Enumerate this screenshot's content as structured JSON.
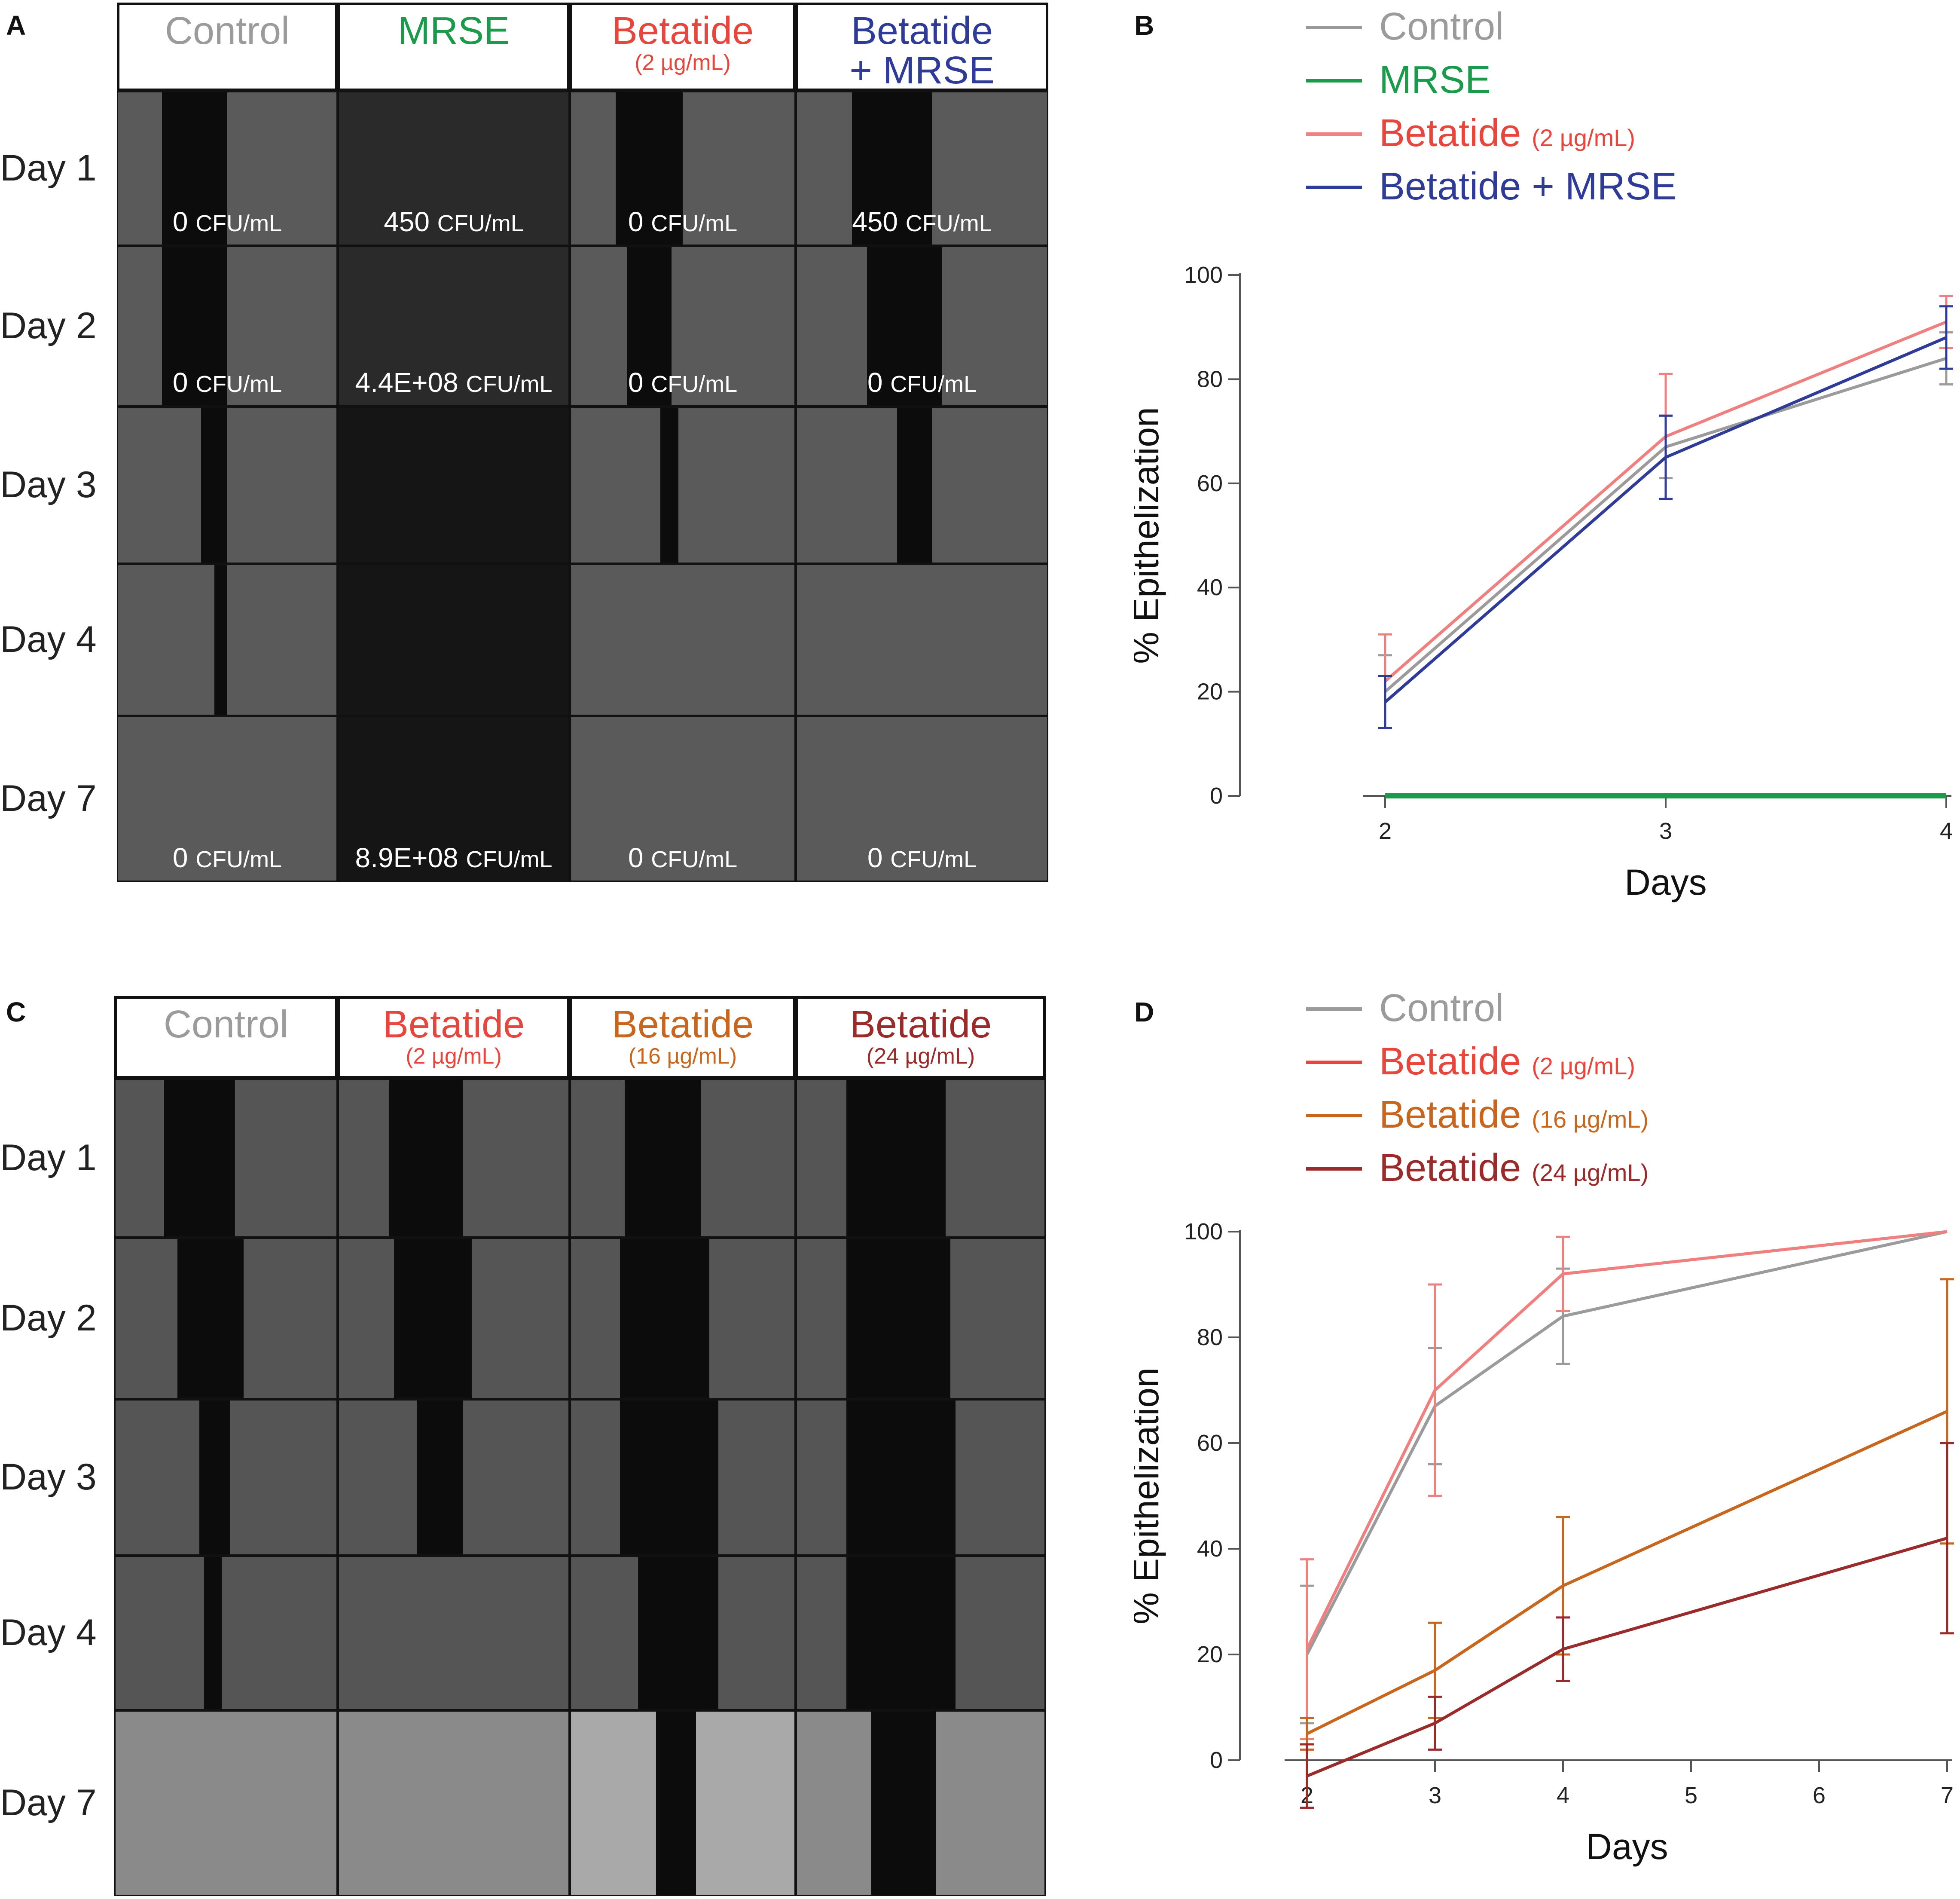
{
  "panel_letters": {
    "a": "A",
    "b": "B",
    "c": "C",
    "d": "D"
  },
  "colors": {
    "control": "#9b9b9b",
    "mrse": "#1a9b4b",
    "betatide2": "#f08080",
    "betatide2_text": "#e8453c",
    "combo": "#2e3b98",
    "betatide16": "#c8661e",
    "betatide24": "#9b2a2a"
  },
  "panel_a": {
    "headers": [
      {
        "title": "Control",
        "sub": "",
        "color": "#9b9b9b"
      },
      {
        "title": "MRSE",
        "sub": "",
        "color": "#1a9b4b"
      },
      {
        "title": "Betatide",
        "sub": "(2 µg/mL)",
        "color": "#e8453c"
      },
      {
        "title": "Betatide",
        "sub": "+ MRSE",
        "color": "#2e3b98"
      }
    ],
    "days": [
      "Day 1",
      "Day 2",
      "Day 3",
      "Day 4",
      "Day 7"
    ],
    "cfu": [
      [
        {
          "v": "0",
          "u": "CFU/mL"
        },
        {
          "v": "450",
          "u": "CFU/mL"
        },
        {
          "v": "0",
          "u": "CFU/mL"
        },
        {
          "v": "450",
          "u": "CFU/mL"
        }
      ],
      [
        {
          "v": "0",
          "u": "CFU/mL"
        },
        {
          "v": "4.4E+08",
          "u": "CFU/mL"
        },
        {
          "v": "0",
          "u": "CFU/mL"
        },
        {
          "v": "0",
          "u": "CFU/mL"
        }
      ],
      [
        null,
        null,
        null,
        null
      ],
      [
        null,
        null,
        null,
        null
      ],
      [
        {
          "v": "0",
          "u": "CFU/mL"
        },
        {
          "v": "8.9E+08",
          "u": "CFU/mL"
        },
        {
          "v": "0",
          "u": "CFU/mL"
        },
        {
          "v": "0",
          "u": "CFU/mL"
        }
      ]
    ]
  },
  "panel_c": {
    "headers": [
      {
        "title": "Control",
        "sub": "",
        "color": "#9b9b9b"
      },
      {
        "title": "Betatide",
        "sub": "(2 µg/mL)",
        "color": "#e8453c"
      },
      {
        "title": "Betatide",
        "sub": "(16 µg/mL)",
        "color": "#c8661e"
      },
      {
        "title": "Betatide",
        "sub": "(24 µg/mL)",
        "color": "#9b2a2a"
      }
    ],
    "days": [
      "Day 1",
      "Day 2",
      "Day 3",
      "Day 4",
      "Day 7"
    ]
  },
  "chart_data": [
    {
      "type": "line",
      "panel": "B",
      "xlabel": "Days",
      "ylabel": "% Epithelization",
      "x": [
        2,
        3,
        4
      ],
      "xticks": [
        "2",
        "3",
        "4"
      ],
      "yticks": [
        "0",
        "20",
        "40",
        "60",
        "80",
        "100"
      ],
      "xlim": [
        2,
        4
      ],
      "ylim": [
        0,
        100
      ],
      "legend": [
        {
          "name": "Control",
          "sub": "",
          "color": "#9b9b9b",
          "text_color": "#9b9b9b"
        },
        {
          "name": "MRSE",
          "sub": "",
          "color": "#1a9b4b",
          "text_color": "#1a9b4b"
        },
        {
          "name": "Betatide",
          "sub": "(2 µg/mL)",
          "color": "#f08080",
          "text_color": "#e8453c"
        },
        {
          "name": "Betatide + MRSE",
          "sub": "",
          "color": "#2e3b98",
          "text_color": "#2e3b98"
        }
      ],
      "series": [
        {
          "name": "Control",
          "color": "#9b9b9b",
          "values": [
            20,
            67,
            84
          ],
          "err": [
            7,
            6,
            5
          ]
        },
        {
          "name": "MRSE",
          "color": "#1a9b4b",
          "values": [
            0,
            0,
            0
          ],
          "err": [
            0,
            0,
            0
          ]
        },
        {
          "name": "Betatide (2 µg/mL)",
          "color": "#f08080",
          "values": [
            22,
            69,
            91
          ],
          "err": [
            9,
            12,
            5
          ]
        },
        {
          "name": "Betatide + MRSE",
          "color": "#2e3b98",
          "values": [
            18,
            65,
            88
          ],
          "err": [
            5,
            8,
            6
          ]
        }
      ]
    },
    {
      "type": "line",
      "panel": "D",
      "xlabel": "Days",
      "ylabel": "% Epithelization",
      "x": [
        2,
        3,
        4,
        7
      ],
      "xticks": [
        "2",
        "3",
        "4",
        "5",
        "6",
        "7"
      ],
      "yticks": [
        "0",
        "20",
        "40",
        "60",
        "80",
        "100"
      ],
      "xlim": [
        2,
        7
      ],
      "ylim": [
        0,
        100
      ],
      "legend": [
        {
          "name": "Control",
          "sub": "",
          "color": "#9b9b9b",
          "text_color": "#9b9b9b"
        },
        {
          "name": "Betatide",
          "sub": "(2 µg/mL)",
          "color": "#e8453c",
          "text_color": "#e8453c"
        },
        {
          "name": "Betatide",
          "sub": "(16 µg/mL)",
          "color": "#c8661e",
          "text_color": "#c8661e"
        },
        {
          "name": "Betatide",
          "sub": "(24 µg/mL)",
          "color": "#9b2a2a",
          "text_color": "#9b2a2a"
        }
      ],
      "series": [
        {
          "name": "Control",
          "color": "#9b9b9b",
          "values": [
            20,
            67,
            84,
            100
          ],
          "err": [
            13,
            11,
            9,
            0
          ]
        },
        {
          "name": "Betatide (2 µg/mL)",
          "color": "#f08080",
          "values": [
            21,
            70,
            92,
            100
          ],
          "err": [
            17,
            20,
            7,
            0
          ]
        },
        {
          "name": "Betatide (16 µg/mL)",
          "color": "#c8661e",
          "values": [
            5,
            17,
            33,
            66
          ],
          "err": [
            3,
            9,
            13,
            25
          ]
        },
        {
          "name": "Betatide (24 µg/mL)",
          "color": "#9b2a2a",
          "values": [
            -3,
            7,
            21,
            42
          ],
          "err": [
            6,
            5,
            6,
            18
          ]
        }
      ]
    }
  ]
}
